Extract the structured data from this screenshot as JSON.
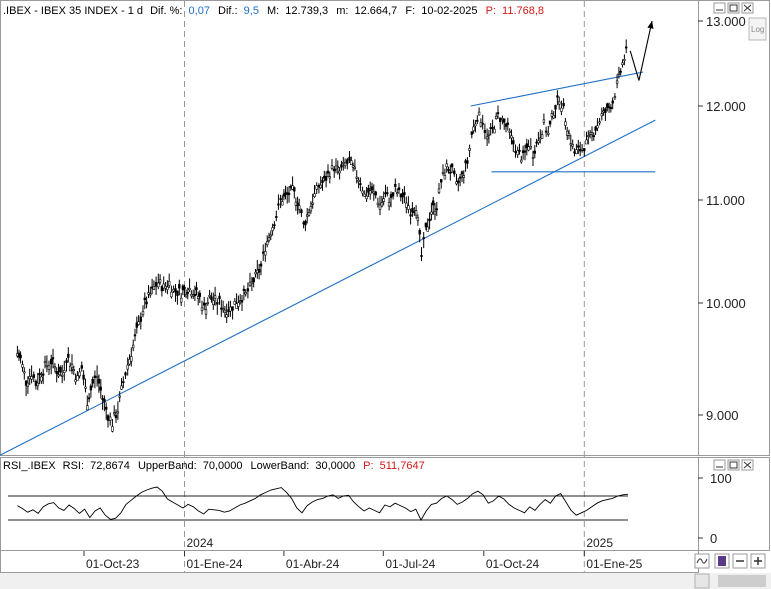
{
  "header": {
    "symbol": ".IBEX - IBEX 35 INDEX - 1 d",
    "dif_pct_label": "Dif. %:",
    "dif_pct_value": "0,07",
    "dif_label": "Dif.:",
    "dif_value": "9,5",
    "max_label": "M:",
    "max_value": "12.739,3",
    "min_label": "m:",
    "min_value": "12.664,7",
    "date_label": "F:",
    "date_value": "10-02-2025",
    "p_label": "P:",
    "p_value": "11.768,8"
  },
  "log_button": "Log",
  "rsi_header": {
    "name": "RSI_.IBEX",
    "rsi_label": "RSI:",
    "rsi_value": "72,8674",
    "upper_label": "UpperBand:",
    "upper_value": "70,0000",
    "lower_label": "LowerBand:",
    "lower_value": "30,0000",
    "p_label": "P:",
    "p_value": "511,7647"
  },
  "colors": {
    "price": "#000000",
    "trendline": "#1f6fc5",
    "header_value": "#1f6fc5",
    "p_value": "#d01818",
    "grid_dash": "#9a9a9a"
  },
  "chart_data": [
    {
      "type": "candlestick",
      "title": ".IBEX - IBEX 35 INDEX - 1 d",
      "y_ticks": [
        9000,
        10000,
        11000,
        12000,
        13000
      ],
      "y_tick_labels": [
        "9.000",
        "10.000",
        "11.000",
        "12.000",
        "13.000"
      ],
      "x_ticks": [
        "01-Oct-23",
        "01-Ene-24",
        "01-Abr-24",
        "01-Jul-24",
        "01-Oct-24",
        "01-Ene-25"
      ],
      "year_markers": [
        "2024",
        "2025"
      ],
      "series": [
        {
          "points": [
            [
              "2023-08-01",
              9550
            ],
            [
              "2023-08-04",
              9500
            ],
            [
              "2023-08-09",
              9300
            ],
            [
              "2023-08-14",
              9380
            ],
            [
              "2023-08-18",
              9280
            ],
            [
              "2023-08-23",
              9380
            ],
            [
              "2023-08-28",
              9450
            ],
            [
              "2023-09-01",
              9480
            ],
            [
              "2023-09-06",
              9400
            ],
            [
              "2023-09-11",
              9360
            ],
            [
              "2023-09-15",
              9520
            ],
            [
              "2023-09-20",
              9450
            ],
            [
              "2023-09-25",
              9320
            ],
            [
              "2023-09-29",
              9420
            ],
            [
              "2023-10-04",
              9130
            ],
            [
              "2023-10-09",
              9280
            ],
            [
              "2023-10-13",
              9350
            ],
            [
              "2023-10-18",
              9150
            ],
            [
              "2023-10-23",
              9000
            ],
            [
              "2023-10-27",
              8930
            ],
            [
              "2023-11-01",
              9050
            ],
            [
              "2023-11-06",
              9300
            ],
            [
              "2023-11-10",
              9450
            ],
            [
              "2023-11-15",
              9620
            ],
            [
              "2023-11-20",
              9800
            ],
            [
              "2023-11-24",
              9950
            ],
            [
              "2023-11-29",
              10050
            ],
            [
              "2023-12-04",
              10150
            ],
            [
              "2023-12-08",
              10200
            ],
            [
              "2023-12-13",
              10150
            ],
            [
              "2023-12-18",
              10200
            ],
            [
              "2023-12-22",
              10120
            ],
            [
              "2023-12-29",
              10100
            ],
            [
              "2024-01-04",
              10150
            ],
            [
              "2024-01-09",
              10120
            ],
            [
              "2024-01-15",
              10050
            ],
            [
              "2024-01-19",
              9950
            ],
            [
              "2024-01-24",
              10050
            ],
            [
              "2024-01-29",
              10020
            ],
            [
              "2024-02-02",
              10000
            ],
            [
              "2024-02-07",
              9950
            ],
            [
              "2024-02-12",
              9950
            ],
            [
              "2024-02-16",
              10000
            ],
            [
              "2024-02-21",
              10050
            ],
            [
              "2024-02-26",
              10080
            ],
            [
              "2024-03-01",
              10150
            ],
            [
              "2024-03-06",
              10250
            ],
            [
              "2024-03-11",
              10350
            ],
            [
              "2024-03-15",
              10550
            ],
            [
              "2024-03-20",
              10700
            ],
            [
              "2024-03-25",
              10850
            ],
            [
              "2024-03-29",
              11000
            ],
            [
              "2024-04-04",
              11050
            ],
            [
              "2024-04-09",
              11100
            ],
            [
              "2024-04-15",
              10950
            ],
            [
              "2024-04-19",
              10750
            ],
            [
              "2024-04-24",
              10900
            ],
            [
              "2024-04-29",
              11050
            ],
            [
              "2024-05-03",
              11150
            ],
            [
              "2024-05-08",
              11200
            ],
            [
              "2024-05-13",
              11300
            ],
            [
              "2024-05-17",
              11350
            ],
            [
              "2024-05-22",
              11300
            ],
            [
              "2024-05-27",
              11380
            ],
            [
              "2024-05-31",
              11400
            ],
            [
              "2024-06-05",
              11300
            ],
            [
              "2024-06-10",
              11200
            ],
            [
              "2024-06-14",
              11050
            ],
            [
              "2024-06-19",
              11100
            ],
            [
              "2024-06-24",
              11050
            ],
            [
              "2024-06-28",
              10950
            ],
            [
              "2024-07-03",
              11050
            ],
            [
              "2024-07-08",
              11000
            ],
            [
              "2024-07-12",
              11100
            ],
            [
              "2024-07-17",
              11050
            ],
            [
              "2024-07-22",
              11000
            ],
            [
              "2024-07-26",
              10900
            ],
            [
              "2024-07-31",
              10950
            ],
            [
              "2024-08-05",
              10450
            ],
            [
              "2024-08-09",
              10700
            ],
            [
              "2024-08-14",
              10900
            ],
            [
              "2024-08-19",
              10950
            ],
            [
              "2024-08-23",
              11200
            ],
            [
              "2024-08-28",
              11350
            ],
            [
              "2024-09-02",
              11300
            ],
            [
              "2024-09-06",
              11150
            ],
            [
              "2024-09-11",
              11250
            ],
            [
              "2024-09-16",
              11400
            ],
            [
              "2024-09-20",
              11700
            ],
            [
              "2024-09-25",
              11900
            ],
            [
              "2024-09-30",
              11850
            ],
            [
              "2024-10-04",
              11650
            ],
            [
              "2024-10-09",
              11750
            ],
            [
              "2024-10-14",
              11900
            ],
            [
              "2024-10-18",
              11850
            ],
            [
              "2024-10-23",
              11750
            ],
            [
              "2024-10-28",
              11600
            ],
            [
              "2024-11-01",
              11500
            ],
            [
              "2024-11-06",
              11450
            ],
            [
              "2024-11-11",
              11600
            ],
            [
              "2024-11-15",
              11500
            ],
            [
              "2024-11-20",
              11650
            ],
            [
              "2024-11-25",
              11800
            ],
            [
              "2024-11-29",
              11700
            ],
            [
              "2024-12-04",
              11950
            ],
            [
              "2024-12-09",
              12100
            ],
            [
              "2024-12-13",
              11950
            ],
            [
              "2024-12-18",
              11700
            ],
            [
              "2024-12-23",
              11500
            ],
            [
              "2024-12-30",
              11550
            ],
            [
              "2025-01-03",
              11600
            ],
            [
              "2025-01-08",
              11700
            ],
            [
              "2025-01-13",
              11800
            ],
            [
              "2025-01-17",
              11900
            ],
            [
              "2025-01-22",
              11950
            ],
            [
              "2025-01-27",
              12050
            ],
            [
              "2025-01-31",
              12250
            ],
            [
              "2025-02-05",
              12500
            ],
            [
              "2025-02-10",
              12700
            ]
          ]
        }
      ]
    },
    {
      "type": "line",
      "title": "RSI_.IBEX",
      "y_ticks": [
        0,
        100
      ],
      "y_tick_labels": [
        "0",
        "100"
      ],
      "upper_band": 70,
      "lower_band": 30,
      "series": [
        {
          "values": [
            54,
            49,
            43,
            47,
            41,
            52,
            57,
            59,
            50,
            46,
            55,
            49,
            41,
            48,
            34,
            45,
            50,
            38,
            31,
            33,
            42,
            56,
            63,
            70,
            76,
            80,
            83,
            85,
            78,
            65,
            60,
            55,
            50,
            56,
            52,
            45,
            40,
            48,
            47,
            46,
            43,
            45,
            50,
            55,
            58,
            62,
            66,
            72,
            76,
            80,
            82,
            84,
            76,
            66,
            50,
            42,
            54,
            60,
            64,
            66,
            70,
            72,
            66,
            70,
            71,
            60,
            52,
            45,
            50,
            46,
            42,
            55,
            52,
            58,
            54,
            50,
            44,
            48,
            30,
            45,
            56,
            58,
            66,
            70,
            64,
            56,
            60,
            66,
            74,
            78,
            72,
            58,
            62,
            70,
            65,
            56,
            50,
            46,
            42,
            52,
            46,
            56,
            64,
            58,
            70,
            74,
            60,
            46,
            38,
            42,
            46,
            52,
            58,
            62,
            64,
            66,
            70,
            72,
            73
          ]
        }
      ]
    }
  ],
  "annotations": {
    "trendline_support": {
      "from": [
        "2023-06-28",
        8550
      ],
      "to": [
        "2025-03-07",
        11850
      ]
    },
    "wedge_upper": {
      "from": [
        "2024-09-19",
        12000
      ],
      "to": [
        "2025-02-24",
        12400
      ]
    },
    "horizontal_support": {
      "from": [
        "2024-10-08",
        11300
      ],
      "to": [
        "2025-03-07",
        11300
      ]
    },
    "arrow_path": [
      [
        "2025-02-12",
        12650
      ],
      [
        "2025-02-20",
        12300
      ],
      [
        "2025-03-04",
        13000
      ]
    ]
  }
}
